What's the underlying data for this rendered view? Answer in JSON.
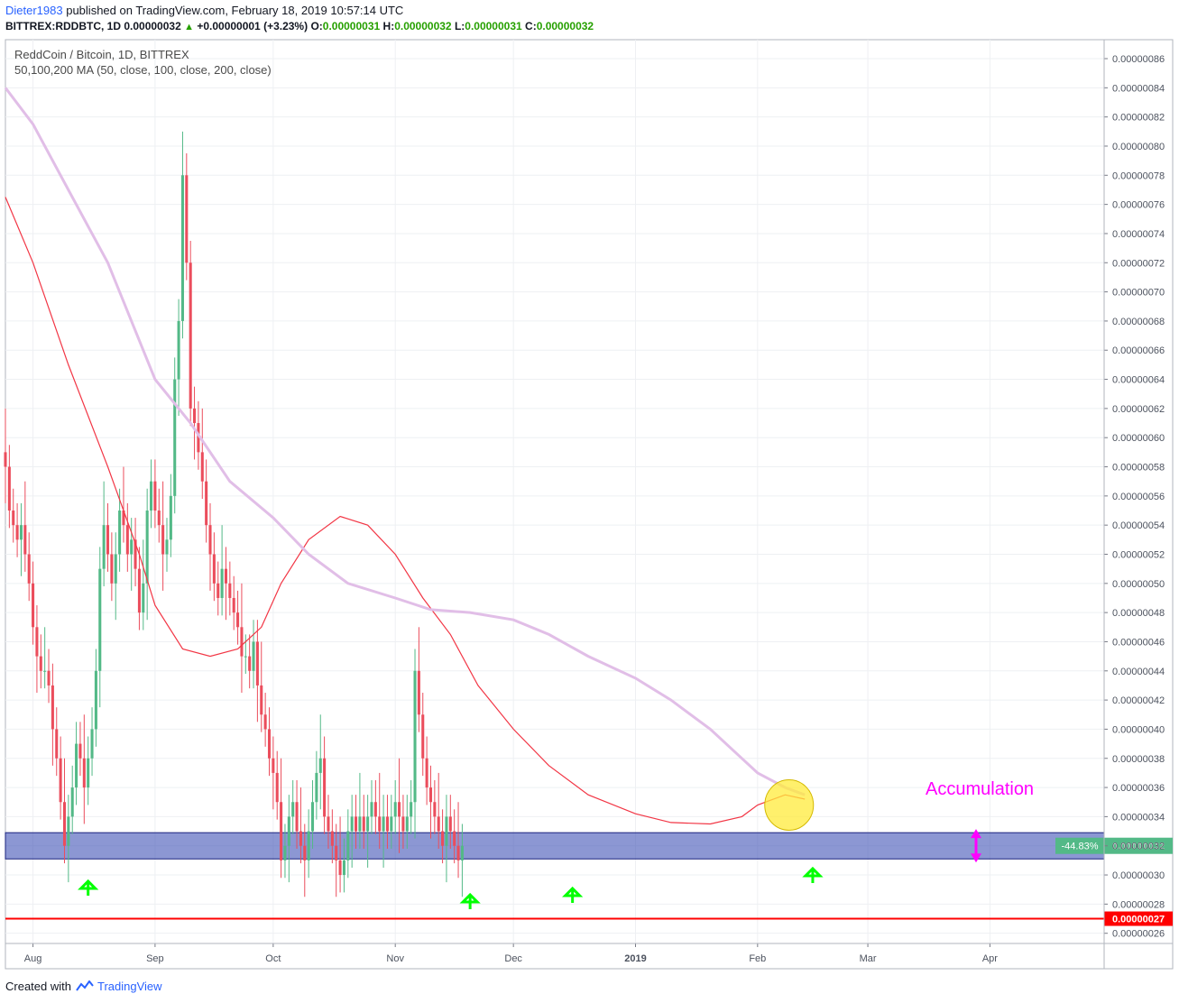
{
  "header": {
    "author": "Dieter1983",
    "published_text": " published on TradingView.com, February 18, 2019 10:57:14 UTC",
    "symbol": "BITTREX:RDDBTC, 1D",
    "last_price": "0.00000032",
    "change": "+0.00000001 (+3.23%)",
    "o_label": "O:",
    "o_value": "0.00000031",
    "h_label": "H:",
    "h_value": "0.00000032",
    "l_label": "L:",
    "l_value": "0.00000031",
    "c_label": "C:",
    "c_value": "0.00000032"
  },
  "legend": {
    "title": "ReddCoin / Bitcoin, 1D, BITTREX",
    "indicator": "50,100,200 MA (50, close, 100, close, 200, close)"
  },
  "annotations": {
    "accumulation": "Accumulation",
    "percent_tag": "-44.83%",
    "price_tag": "0.00000032",
    "support_tag": "0.00000027"
  },
  "footer": {
    "created_with": "Created with",
    "brand": "TradingView"
  },
  "colors": {
    "up": "#53b987",
    "down": "#eb4d5c",
    "ma50": "#f23645",
    "ma200": "#e1bee7",
    "zone": "#3f51b5",
    "support": "#ff0000",
    "arrows": "#00ff00",
    "accumulation": "#ff00ff",
    "ellipse": "#ffeb3b"
  },
  "chart_data": {
    "type": "candlestick",
    "title": "ReddCoin / Bitcoin, 1D, BITTREX",
    "x_ticks": [
      {
        "label": "Aug",
        "date": "2018-08-01"
      },
      {
        "label": "Sep",
        "date": "2018-09-01"
      },
      {
        "label": "Oct",
        "date": "2018-10-01"
      },
      {
        "label": "Nov",
        "date": "2018-11-01"
      },
      {
        "label": "Dec",
        "date": "2018-12-01"
      },
      {
        "label": "2019",
        "date": "2019-01-01"
      },
      {
        "label": "Feb",
        "date": "2019-02-01"
      },
      {
        "label": "Mar",
        "date": "2019-03-01"
      },
      {
        "label": "Apr",
        "date": "2019-04-01"
      }
    ],
    "x_range": [
      "2018-07-25",
      "2019-04-30"
    ],
    "y_ticks": [
      "0.00000026",
      "0.00000028",
      "0.00000030",
      "0.00000032",
      "0.00000034",
      "0.00000036",
      "0.00000038",
      "0.00000040",
      "0.00000042",
      "0.00000044",
      "0.00000046",
      "0.00000048",
      "0.00000050",
      "0.00000052",
      "0.00000054",
      "0.00000056",
      "0.00000058",
      "0.00000060",
      "0.00000062",
      "0.00000064",
      "0.00000066",
      "0.00000068",
      "0.00000070",
      "0.00000072",
      "0.00000074",
      "0.00000076",
      "0.00000078",
      "0.00000080",
      "0.00000082",
      "0.00000084",
      "0.00000086"
    ],
    "y_range": [
      2.53e-07,
      8.73e-07
    ],
    "start_date": "2018-07-25",
    "closes": [
      58,
      55,
      54,
      53,
      54,
      52,
      50,
      47,
      45,
      44,
      44,
      43,
      40,
      38,
      35,
      32,
      34,
      36,
      39,
      38,
      36,
      38,
      40,
      44,
      51,
      54,
      52,
      50,
      52,
      55,
      54,
      52,
      53,
      51,
      48,
      50,
      55,
      57,
      55,
      54,
      52,
      53,
      56,
      64,
      68,
      78,
      72,
      62,
      61,
      59,
      57,
      54,
      52,
      50,
      49,
      51,
      50,
      49,
      48,
      47,
      45,
      45,
      44,
      46,
      43,
      41,
      40,
      38,
      37,
      35,
      31,
      32,
      34,
      35,
      33,
      32,
      31,
      33,
      35,
      37,
      38,
      34,
      33,
      32,
      31,
      30,
      31,
      33,
      34,
      33,
      34,
      33,
      34,
      35,
      34,
      33,
      34,
      33,
      34,
      35,
      34,
      33,
      34,
      35,
      44,
      41,
      38,
      36,
      35,
      34,
      33,
      32,
      34,
      33,
      32,
      31,
      32
    ],
    "moving_averages": [
      {
        "name": "MA 50",
        "color": "#f23645",
        "dates": [
          "2018-07-25",
          "2018-08-01",
          "2018-08-10",
          "2018-08-20",
          "2018-08-28",
          "2018-09-01",
          "2018-09-08",
          "2018-09-15",
          "2018-09-22",
          "2018-09-28",
          "2018-10-03",
          "2018-10-10",
          "2018-10-18",
          "2018-10-25",
          "2018-11-01",
          "2018-11-08",
          "2018-11-15",
          "2018-11-22",
          "2018-12-01",
          "2018-12-10",
          "2018-12-20",
          "2019-01-01",
          "2019-01-10",
          "2019-01-20",
          "2019-01-28",
          "2019-02-01",
          "2019-02-08",
          "2019-02-13"
        ],
        "values": [
          76.5,
          72,
          65,
          58,
          52,
          48.5,
          45.5,
          45,
          45.5,
          47,
          50,
          53,
          54.6,
          54,
          52,
          49,
          46.5,
          43,
          40,
          37.5,
          35.5,
          34.2,
          33.6,
          33.5,
          34,
          34.8,
          35.5,
          35.2
        ]
      },
      {
        "name": "MA 200",
        "color": "#e1bee7",
        "dates": [
          "2018-07-25",
          "2018-08-01",
          "2018-08-10",
          "2018-08-20",
          "2018-09-01",
          "2018-09-10",
          "2018-09-20",
          "2018-10-01",
          "2018-10-10",
          "2018-10-20",
          "2018-11-01",
          "2018-11-10",
          "2018-11-20",
          "2018-12-01",
          "2018-12-10",
          "2018-12-20",
          "2019-01-01",
          "2019-01-10",
          "2019-01-20",
          "2019-01-28",
          "2019-02-01",
          "2019-02-08",
          "2019-02-13"
        ],
        "values": [
          84,
          81.5,
          77,
          72,
          64,
          61,
          57,
          54.5,
          52,
          50,
          49,
          48.2,
          48,
          47.5,
          46.5,
          45,
          43.5,
          42,
          40,
          38,
          37,
          36,
          35.5
        ]
      }
    ],
    "zone": {
      "low": 3.11e-07,
      "high": 3.29e-07,
      "color": "#3f51b5"
    },
    "support_level": 2.7e-07,
    "current_price": 3.2e-07,
    "change_percent": "-44.83%"
  }
}
